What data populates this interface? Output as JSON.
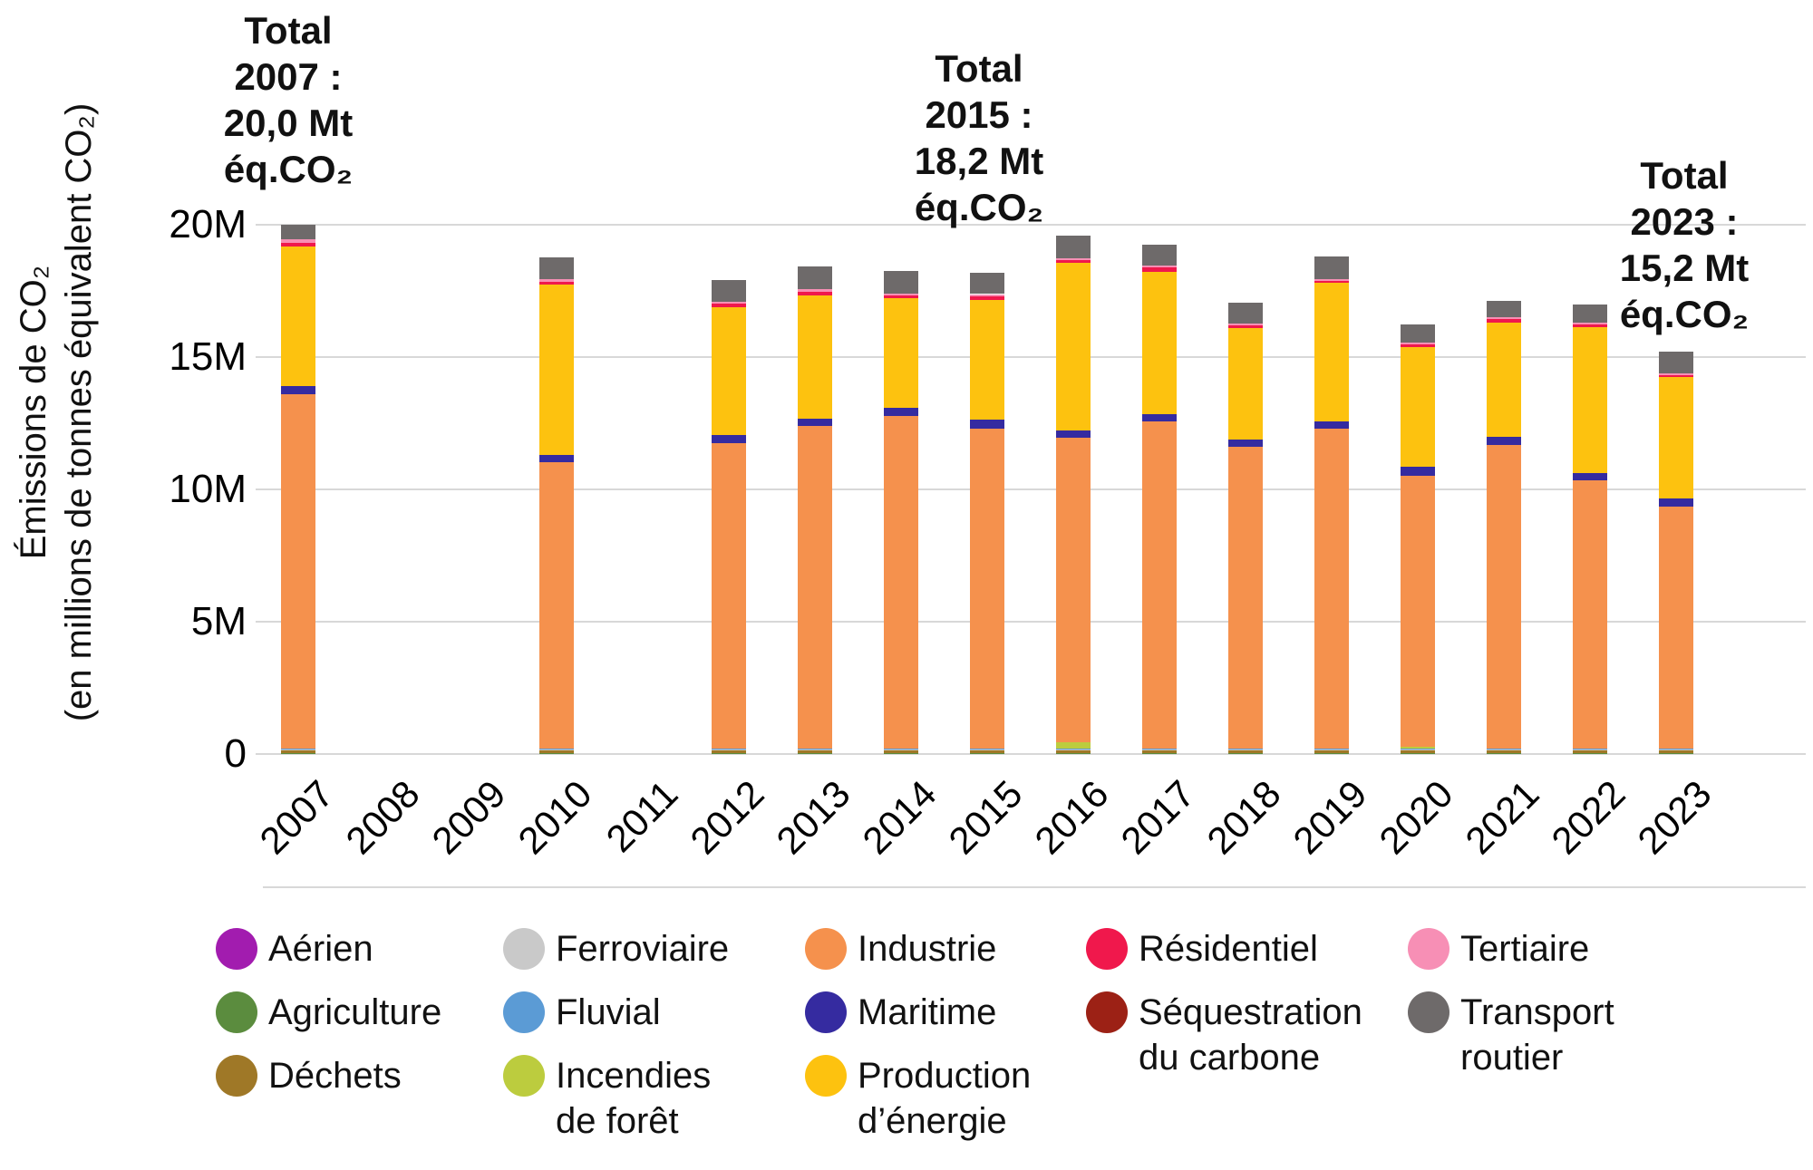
{
  "chart_data": {
    "type": "bar",
    "stacked": true,
    "grid": true,
    "ylim": [
      0,
      20
    ],
    "ylabel_line1": "Émissions de CO₂",
    "ylabel_line2": "(en millions de tonnes équivalent CO₂)",
    "y_ticks": [
      {
        "label": "0",
        "value": 0
      },
      {
        "label": "5M",
        "value": 5
      },
      {
        "label": "10M",
        "value": 10
      },
      {
        "label": "15M",
        "value": 15
      },
      {
        "label": "20M",
        "value": 20
      }
    ],
    "categories": [
      "2007",
      "2008",
      "2009",
      "2010",
      "2011",
      "2012",
      "2013",
      "2014",
      "2015",
      "2016",
      "2017",
      "2018",
      "2019",
      "2020",
      "2021",
      "2022",
      "2023"
    ],
    "series": [
      {
        "name": "Aérien",
        "color": "#A21CAF",
        "values": [
          0.02,
          0,
          0,
          0.02,
          0,
          0.02,
          0.02,
          0.02,
          0.02,
          0.02,
          0.02,
          0.02,
          0.02,
          0.02,
          0.02,
          0.02,
          0.02
        ]
      },
      {
        "name": "Agriculture",
        "color": "#5B8C3E",
        "values": [
          0.03,
          0,
          0,
          0.03,
          0,
          0.03,
          0.03,
          0.03,
          0.03,
          0.03,
          0.03,
          0.03,
          0.03,
          0.03,
          0.03,
          0.03,
          0.03
        ]
      },
      {
        "name": "Déchets",
        "color": "#9F7827",
        "values": [
          0.12,
          0,
          0,
          0.12,
          0,
          0.12,
          0.12,
          0.12,
          0.12,
          0.12,
          0.12,
          0.12,
          0.12,
          0.12,
          0.12,
          0.12,
          0.12
        ]
      },
      {
        "name": "Ferroviaire",
        "color": "#C9C9C9",
        "values": [
          0.01,
          0,
          0,
          0.01,
          0,
          0.01,
          0.01,
          0.01,
          0.01,
          0.01,
          0.01,
          0.01,
          0.01,
          0.01,
          0.01,
          0.01,
          0.01
        ]
      },
      {
        "name": "Fluvial",
        "color": "#5B9BD5",
        "values": [
          0.01,
          0,
          0,
          0.01,
          0,
          0.01,
          0.01,
          0.01,
          0.01,
          0.01,
          0.01,
          0.01,
          0.01,
          0.01,
          0.01,
          0.01,
          0.01
        ]
      },
      {
        "name": "Incendies de forêt",
        "color": "#BCCC3E",
        "values": [
          0,
          0,
          0,
          0,
          0,
          0,
          0,
          0,
          0,
          0.25,
          0,
          0,
          0,
          0.08,
          0,
          0,
          0
        ]
      },
      {
        "name": "Industrie",
        "color": "#F5914D",
        "values": [
          13.42,
          0,
          0,
          10.83,
          0,
          11.57,
          12.2,
          12.59,
          12.09,
          11.51,
          12.38,
          11.42,
          12.09,
          10.24,
          11.5,
          10.15,
          9.16
        ]
      },
      {
        "name": "Maritime",
        "color": "#352BA0",
        "values": [
          0.3,
          0,
          0,
          0.29,
          0,
          0.29,
          0.28,
          0.29,
          0.35,
          0.28,
          0.28,
          0.28,
          0.29,
          0.33,
          0.28,
          0.28,
          0.31
        ]
      },
      {
        "name": "Production d’énergie",
        "color": "#FDC20F",
        "values": [
          5.26,
          0,
          0,
          6.42,
          0,
          4.83,
          4.66,
          4.15,
          4.54,
          6.33,
          5.37,
          4.22,
          5.24,
          4.55,
          4.32,
          5.5,
          4.58
        ]
      },
      {
        "name": "Résidentiel",
        "color": "#F0184C",
        "values": [
          0.16,
          0,
          0,
          0.12,
          0,
          0.14,
          0.15,
          0.12,
          0.13,
          0.1,
          0.17,
          0.1,
          0.08,
          0.1,
          0.15,
          0.1,
          0.08
        ]
      },
      {
        "name": "Séquestration du carbone",
        "color": "#9C2115",
        "values": [
          0,
          0,
          0,
          0,
          0,
          0,
          0,
          0,
          0,
          0,
          0,
          0,
          0,
          0,
          0,
          0,
          0
        ]
      },
      {
        "name": "Tertiaire",
        "color": "#F78FB5",
        "values": [
          0.12,
          0,
          0,
          0.08,
          0,
          0.08,
          0.08,
          0.05,
          0.08,
          0.07,
          0.06,
          0.06,
          0.05,
          0.07,
          0.08,
          0.07,
          0.06
        ]
      },
      {
        "name": "Transport routier",
        "color": "#6E6A6A",
        "values": [
          0.56,
          0,
          0,
          0.85,
          0,
          0.8,
          0.85,
          0.85,
          0.79,
          0.85,
          0.79,
          0.77,
          0.85,
          0.68,
          0.61,
          0.68,
          0.82
        ]
      }
    ],
    "totals_shown": [
      {
        "year": "2007",
        "total_label": "20,0 Mt"
      },
      {
        "year": "2015",
        "total_label": "18,2 Mt"
      },
      {
        "year": "2023",
        "total_label": "15,2 Mt"
      }
    ],
    "annotations": [
      {
        "lines": [
          "Total",
          "2007 :",
          "20,0 Mt",
          "éq.CO₂"
        ]
      },
      {
        "lines": [
          "Total",
          "2015 :",
          "18,2 Mt",
          "éq.CO₂"
        ]
      },
      {
        "lines": [
          "Total",
          "2023 :",
          "15,2 Mt",
          "éq.CO₂"
        ]
      }
    ],
    "legend": {
      "position": "bottom",
      "columns": [
        {
          "items": [
            {
              "series": "Aérien"
            },
            {
              "series": "Agriculture"
            },
            {
              "series": "Déchets"
            }
          ]
        },
        {
          "items": [
            {
              "series": "Ferroviaire"
            },
            {
              "series": "Fluvial"
            },
            {
              "series": "Incendies de forêt",
              "lines": [
                "Incendies",
                "de forêt"
              ]
            }
          ]
        },
        {
          "items": [
            {
              "series": "Industrie"
            },
            {
              "series": "Maritime"
            },
            {
              "series": "Production d’énergie",
              "lines": [
                "Production",
                "d’énergie"
              ]
            }
          ]
        },
        {
          "items": [
            {
              "series": "Résidentiel"
            },
            {
              "series": "Séquestration du carbone",
              "lines": [
                "Séquestration",
                "du carbone"
              ]
            }
          ]
        },
        {
          "items": [
            {
              "series": "Tertiaire"
            },
            {
              "series": "Transport routier",
              "lines": [
                "Transport",
                "routier"
              ]
            }
          ]
        }
      ]
    }
  }
}
